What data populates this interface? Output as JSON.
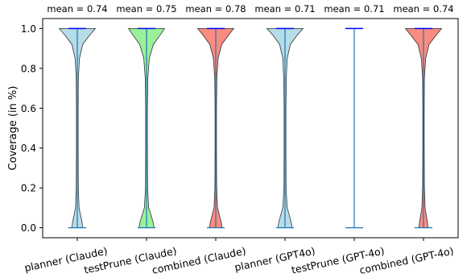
{
  "chart_data": {
    "type": "violin",
    "ylabel": "Coverage (in %)",
    "ylim": [
      -0.05,
      1.05
    ],
    "yticks": [
      "0.0",
      "0.2",
      "0.4",
      "0.6",
      "0.8",
      "1.0"
    ],
    "ytick_values": [
      0,
      0.2,
      0.4,
      0.6,
      0.8,
      1.0
    ],
    "grid": false,
    "categories": [
      "planner (Claude)",
      "testPrune (Claude)",
      "combined (Claude)",
      "planner (GPT4o)",
      "testPrune (GPT-4o)",
      "combined (GPT-4o)"
    ],
    "mean_labels": [
      "mean = 0.74",
      "mean = 0.75",
      "mean = 0.78",
      "mean = 0.71",
      "mean = 0.71",
      "mean = 0.74"
    ],
    "means": [
      0.74,
      0.75,
      0.78,
      0.71,
      0.71,
      0.74
    ],
    "range": [
      0,
      1
    ],
    "fill_colors": [
      "#add8e6",
      "#90ee90",
      "#fa8072",
      "#add8e6",
      "#add8e6",
      "#fa8072"
    ],
    "stem_color": "#1f77b4",
    "median_color": "#0000ff",
    "density_profiles": [
      [
        [
          0,
          0.3
        ],
        [
          0.03,
          0.26
        ],
        [
          0.06,
          0.19
        ],
        [
          0.1,
          0.1
        ],
        [
          0.2,
          0.06
        ],
        [
          0.4,
          0.05
        ],
        [
          0.6,
          0.05
        ],
        [
          0.75,
          0.06
        ],
        [
          0.85,
          0.12
        ],
        [
          0.92,
          0.3
        ],
        [
          0.97,
          0.72
        ],
        [
          1.0,
          1.0
        ]
      ],
      [
        [
          0,
          0.42
        ],
        [
          0.03,
          0.36
        ],
        [
          0.06,
          0.26
        ],
        [
          0.1,
          0.12
        ],
        [
          0.2,
          0.06
        ],
        [
          0.4,
          0.05
        ],
        [
          0.6,
          0.05
        ],
        [
          0.75,
          0.07
        ],
        [
          0.85,
          0.15
        ],
        [
          0.92,
          0.38
        ],
        [
          0.97,
          0.78
        ],
        [
          1.0,
          1.0
        ]
      ],
      [
        [
          0,
          0.36
        ],
        [
          0.03,
          0.3
        ],
        [
          0.06,
          0.21
        ],
        [
          0.1,
          0.1
        ],
        [
          0.2,
          0.05
        ],
        [
          0.4,
          0.04
        ],
        [
          0.6,
          0.04
        ],
        [
          0.75,
          0.06
        ],
        [
          0.85,
          0.13
        ],
        [
          0.92,
          0.33
        ],
        [
          0.97,
          0.74
        ],
        [
          1.0,
          1.0
        ]
      ],
      [
        [
          0,
          0.4
        ],
        [
          0.03,
          0.34
        ],
        [
          0.06,
          0.25
        ],
        [
          0.1,
          0.12
        ],
        [
          0.2,
          0.06
        ],
        [
          0.4,
          0.05
        ],
        [
          0.6,
          0.05
        ],
        [
          0.75,
          0.07
        ],
        [
          0.85,
          0.12
        ],
        [
          0.92,
          0.3
        ],
        [
          0.97,
          0.7
        ],
        [
          1.0,
          1.0
        ]
      ],
      [],
      [
        [
          0,
          0.25
        ],
        [
          0.03,
          0.22
        ],
        [
          0.06,
          0.16
        ],
        [
          0.1,
          0.09
        ],
        [
          0.2,
          0.05
        ],
        [
          0.4,
          0.04
        ],
        [
          0.6,
          0.04
        ],
        [
          0.75,
          0.05
        ],
        [
          0.85,
          0.12
        ],
        [
          0.92,
          0.31
        ],
        [
          0.97,
          0.74
        ],
        [
          1.0,
          1.0
        ]
      ]
    ]
  }
}
